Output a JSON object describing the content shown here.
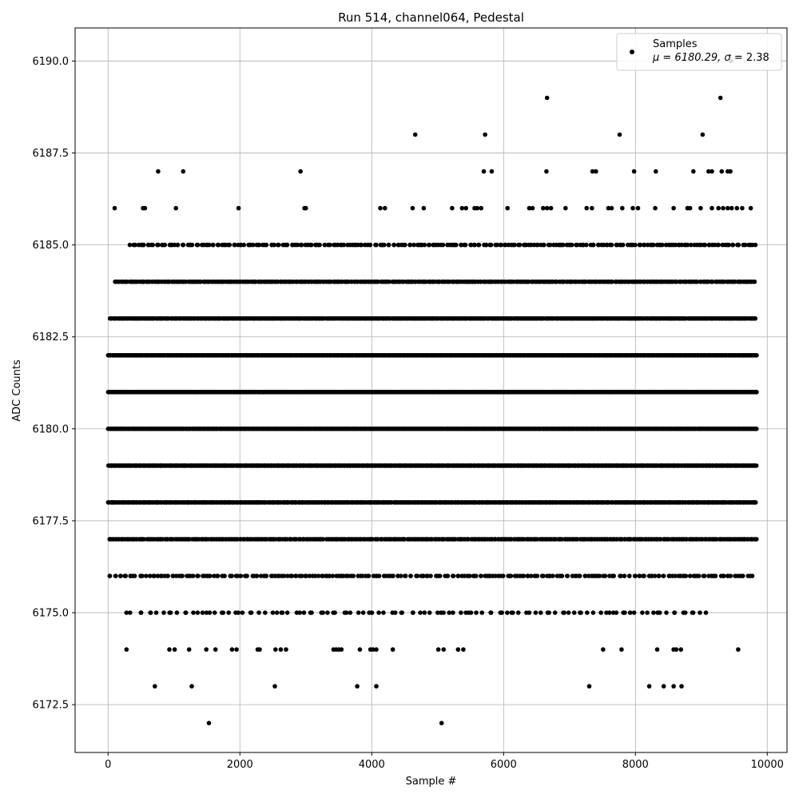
{
  "chart_data": {
    "type": "scatter",
    "title": "Run 514, channel064, Pedestal",
    "xlabel": "Sample #",
    "ylabel": "ADC Counts",
    "xlim": [
      -500,
      10300
    ],
    "ylim": [
      6171.2,
      6190.9
    ],
    "x_ticks": [
      0,
      2000,
      4000,
      6000,
      8000,
      10000
    ],
    "x_tick_labels": [
      "0",
      "2000",
      "4000",
      "6000",
      "8000",
      "10000"
    ],
    "y_ticks": [
      6172.5,
      6175.0,
      6177.5,
      6180.0,
      6182.5,
      6185.0,
      6187.5,
      6190.0
    ],
    "y_tick_labels": [
      "6172.5",
      "6175.0",
      "6177.5",
      "6180.0",
      "6182.5",
      "6185.0",
      "6187.5",
      "6190.0"
    ],
    "grid": true,
    "legend_position": "top-right",
    "legend": {
      "label": "Samples",
      "stats_prefix": "μ = 6180.29, ",
      "sigma_symbol": "σ",
      "stats_suffix": " = 2.38"
    },
    "marker_color": "#000000",
    "series": [
      {
        "name": "Samples",
        "levels": [
          {
            "y": 6190,
            "x": [
              9450
            ]
          },
          {
            "y": 6189,
            "x": [
              6660,
              9290
            ]
          },
          {
            "y": 6188,
            "x": [
              4660,
              5720,
              7760,
              9020
            ]
          },
          {
            "y": 6187,
            "x": [
              760,
              1140,
              2920,
              5700,
              5820,
              6650,
              7350,
              7400,
              7980,
              8310,
              8880,
              9110,
              9160,
              9310,
              9400,
              9440
            ]
          },
          {
            "y": 6186,
            "x": [
              100,
              530,
              560,
              1030,
              1980,
              2980,
              3000,
              4130,
              4200,
              4620,
              4790,
              5220,
              5370,
              5430,
              5560,
              5600,
              5660,
              6060,
              6390,
              6440,
              6600,
              6660,
              6720,
              6940,
              7260,
              7340,
              7590,
              7640,
              7800,
              7960,
              8040,
              8300,
              8580,
              8790,
              8830,
              8990,
              9160,
              9260,
              9330,
              9400,
              9460,
              9540,
              9620,
              9750
            ]
          },
          {
            "y": 6174,
            "x": [
              280,
              930,
              1010,
              1230,
              1490,
              1630,
              1880,
              1950,
              2270,
              2300,
              2540,
              2620,
              2700,
              3420,
              3460,
              3500,
              3540,
              3820,
              3980,
              4020,
              4070,
              4320,
              5010,
              5090,
              5310,
              5390,
              7510,
              7790,
              8330,
              8580,
              8620,
              8690,
              9560
            ]
          },
          {
            "y": 6173,
            "x": [
              710,
              1270,
              2530,
              3780,
              4070,
              7300,
              8210,
              8430,
              8580,
              8700
            ]
          },
          {
            "y": 6172,
            "x": [
              1530,
              5060
            ]
          }
        ],
        "bands": [
          {
            "y": 6185,
            "x_start": 330,
            "x_end": 9820,
            "count": 270
          },
          {
            "y": 6184,
            "x_start": 100,
            "x_end": 9830,
            "count": 460
          },
          {
            "y": 6183,
            "x_start": 20,
            "x_end": 9830,
            "count": 620
          },
          {
            "y": 6182,
            "x_start": 0,
            "x_end": 9840,
            "count": 780
          },
          {
            "y": 6181,
            "x_start": 0,
            "x_end": 9840,
            "count": 880
          },
          {
            "y": 6180,
            "x_start": 0,
            "x_end": 9840,
            "count": 800
          },
          {
            "y": 6179,
            "x_start": 0,
            "x_end": 9840,
            "count": 720
          },
          {
            "y": 6178,
            "x_start": 0,
            "x_end": 9840,
            "count": 620
          },
          {
            "y": 6177,
            "x_start": 0,
            "x_end": 9840,
            "count": 500
          },
          {
            "y": 6176,
            "x_start": 0,
            "x_end": 9790,
            "count": 260
          },
          {
            "y": 6175,
            "x_start": 280,
            "x_end": 9090,
            "count": 120
          }
        ]
      }
    ]
  }
}
